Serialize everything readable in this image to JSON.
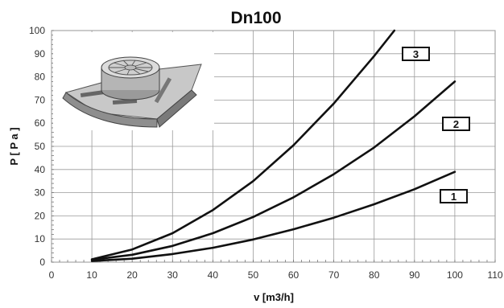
{
  "chart_data": {
    "type": "line",
    "title": "Dn100",
    "xlabel": "v [m3/h]",
    "ylabel": "P  [ P a ]",
    "xlim": [
      0,
      110
    ],
    "ylim": [
      0,
      100
    ],
    "x_ticks": [
      "0",
      "10",
      "20",
      "30",
      "40",
      "50",
      "60",
      "70",
      "80",
      "90",
      "100",
      "110"
    ],
    "y_ticks": [
      "0",
      "10",
      "20",
      "30",
      "40",
      "50",
      "60",
      "70",
      "80",
      "90",
      "100"
    ],
    "grid": true,
    "series": [
      {
        "name": "1",
        "x": [
          10,
          20,
          30,
          40,
          50,
          60,
          70,
          80,
          90,
          100
        ],
        "y": [
          0.5,
          1.5,
          3.5,
          6.2,
          9.8,
          14.2,
          19.2,
          25,
          31.5,
          39
        ]
      },
      {
        "name": "2",
        "x": [
          10,
          20,
          30,
          40,
          50,
          60,
          70,
          80,
          90,
          100
        ],
        "y": [
          1,
          3.2,
          7,
          12.5,
          19.5,
          28,
          38,
          49.5,
          63,
          78
        ]
      },
      {
        "name": "3",
        "x": [
          10,
          20,
          30,
          40,
          50,
          60,
          70,
          80,
          85
        ],
        "y": [
          1.2,
          5.5,
          12.5,
          22.5,
          35,
          50.5,
          68.5,
          89,
          100
        ]
      }
    ],
    "curve_labels": [
      "3",
      "2",
      "1"
    ],
    "inset_image": "duct-damper-illustration"
  }
}
